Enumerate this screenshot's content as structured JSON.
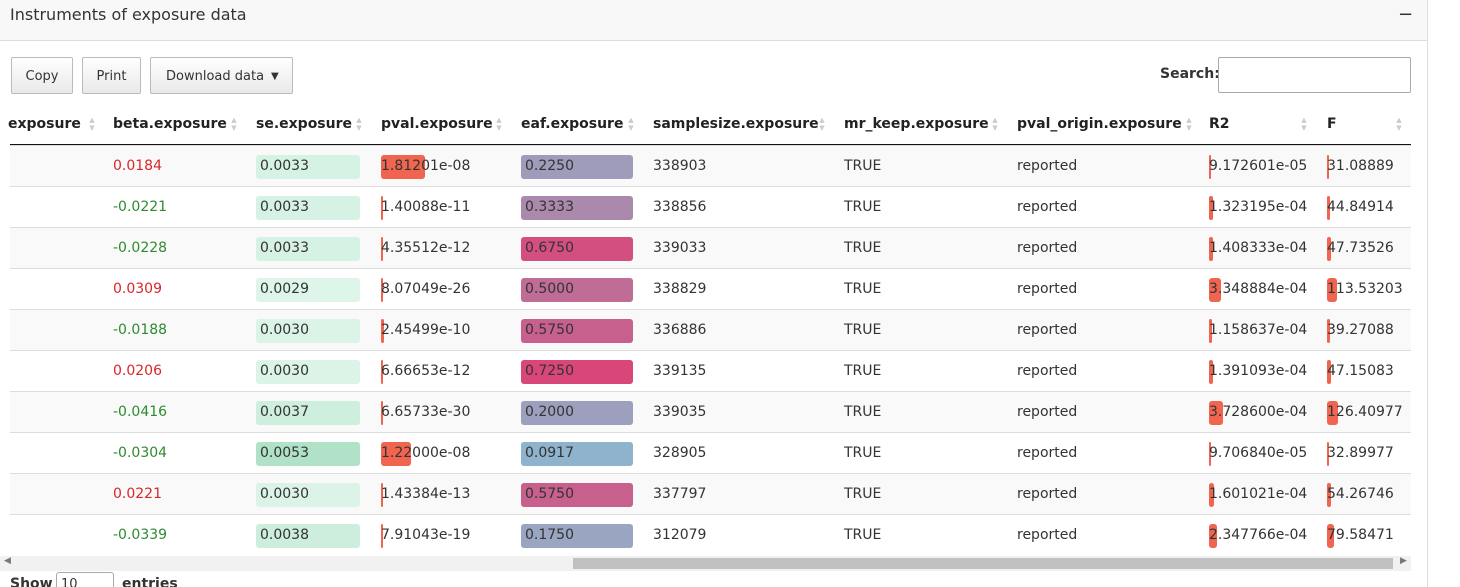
{
  "panel": {
    "title": "Instruments of exposure data",
    "collapse": "−"
  },
  "buttons": [
    "Copy",
    "Print",
    "Download data"
  ],
  "search_label": "Search:",
  "table": {
    "columns": [
      "exposure",
      "beta.exposure",
      "se.exposure",
      "pval.exposure",
      "eaf.exposure",
      "samplesize.exposure",
      "mr_keep.exposure",
      "pval_origin.exposure",
      "R2",
      "F"
    ],
    "rows": [
      [
        null,
        "0.0184",
        "0.0033",
        "1.81201e-08",
        "0.2250",
        "338903",
        "TRUE",
        "reported",
        "9.172601e-05",
        "31.08889"
      ],
      [
        null,
        "-0.0221",
        "0.0033",
        "1.40088e-11",
        "0.3333",
        "338856",
        "TRUE",
        "reported",
        "1.323195e-04",
        "44.84914"
      ],
      [
        null,
        "-0.0228",
        "0.0033",
        "4.35512e-12",
        "0.6750",
        "339033",
        "TRUE",
        "reported",
        "1.408333e-04",
        "47.73526"
      ],
      [
        null,
        "0.0309",
        "0.0029",
        "8.07049e-26",
        "0.5000",
        "338829",
        "TRUE",
        "reported",
        "3.348884e-04",
        "113.53203"
      ],
      [
        null,
        "-0.0188",
        "0.0030",
        "2.45499e-10",
        "0.5750",
        "336886",
        "TRUE",
        "reported",
        "1.158637e-04",
        "39.27088"
      ],
      [
        null,
        "0.0206",
        "0.0030",
        "6.66653e-12",
        "0.7250",
        "339135",
        "TRUE",
        "reported",
        "1.391093e-04",
        "47.15083"
      ],
      [
        null,
        "-0.0416",
        "0.0037",
        "6.65733e-30",
        "0.2000",
        "339035",
        "TRUE",
        "reported",
        "3.728600e-04",
        "126.40977"
      ],
      [
        null,
        "-0.0304",
        "0.0053",
        "1.22000e-08",
        "0.0917",
        "328905",
        "TRUE",
        "reported",
        "9.706840e-05",
        "32.89977"
      ],
      [
        null,
        "0.0221",
        "0.0030",
        "1.43384e-13",
        "0.5750",
        "337797",
        "TRUE",
        "reported",
        "1.601021e-04",
        "54.26746"
      ],
      [
        null,
        "-0.0339",
        "0.0038",
        "7.91043e-19",
        "0.1750",
        "312079",
        "TRUE",
        "reported",
        "2.347766e-04",
        "79.58471"
      ]
    ]
  },
  "footer": {
    "show": "Show",
    "length": "10",
    "entries": "entries"
  }
}
